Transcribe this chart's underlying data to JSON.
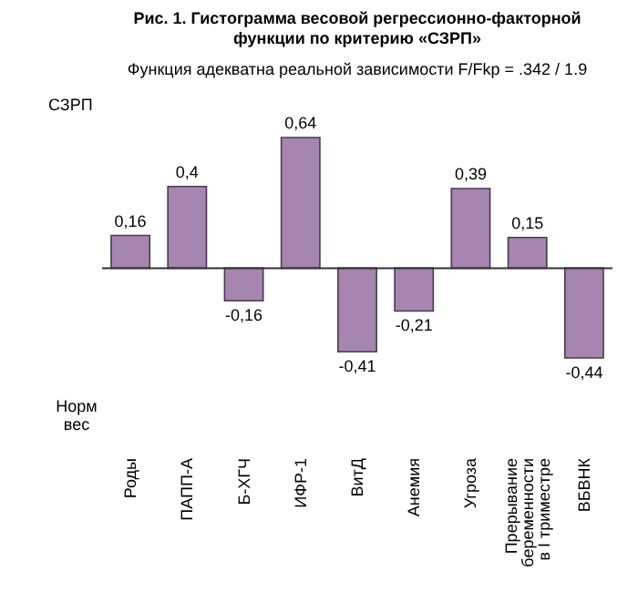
{
  "chart_data": {
    "type": "bar",
    "title": "Рис. 1. Гистограмма весовой регрессионно-факторной функции по критерию «СЗРП»",
    "subtitle": "Функция адекватна реальной зависимости F/Fkp = .342 / 1.9",
    "ylabel": "СЗРП",
    "annotations": [
      "Норм вес"
    ],
    "categories": [
      "Роды",
      "ПАПП-А",
      "Б-ХГЧ",
      "ИФР-1",
      "ВитД",
      "Анемия",
      "Угроза",
      "Прерывание беременности в I триместре",
      "ВБВНК"
    ],
    "values": [
      0.16,
      0.4,
      -0.16,
      0.64,
      -0.41,
      -0.21,
      0.39,
      0.15,
      -0.44
    ],
    "value_labels": [
      "0,16",
      "0,4",
      "-0,16",
      "0,64",
      "-0,41",
      "-0,21",
      "0,39",
      "0,15",
      "-0,44"
    ],
    "color": "#a685b0",
    "data_labels": true,
    "tick_labels": "x"
  }
}
